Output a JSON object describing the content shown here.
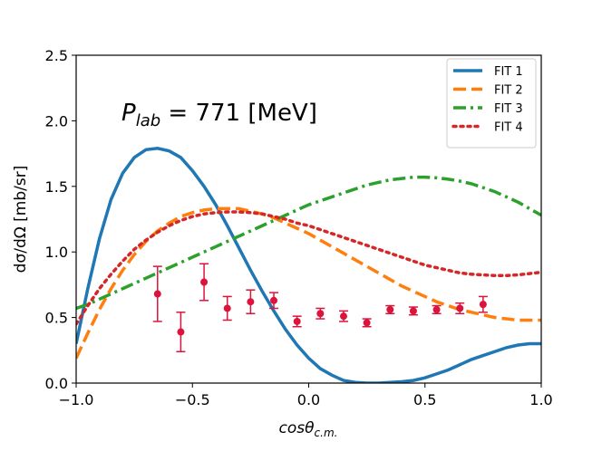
{
  "chart_data": {
    "type": "line",
    "xlabel_main": "cosθ",
    "xlabel_sub": "c.m.",
    "ylabel": "dσ/dΩ [mb/sr]",
    "xlim": [
      -1.0,
      1.0
    ],
    "ylim": [
      0.0,
      2.5
    ],
    "xticks": [
      -1.0,
      -0.5,
      0.0,
      0.5,
      1.0
    ],
    "xtick_labels": [
      "−1.0",
      "−0.5",
      "0.0",
      "0.5",
      "1.0"
    ],
    "yticks": [
      0.0,
      0.5,
      1.0,
      1.5,
      2.0,
      2.5
    ],
    "ytick_labels": [
      "0.0",
      "0.5",
      "1.0",
      "1.5",
      "2.0",
      "2.5"
    ],
    "annotation": {
      "main": "P",
      "sub": "lab",
      "rest": " = 771 [MeV]"
    },
    "legend_position": "top-right",
    "series": [
      {
        "name": "FIT 1",
        "color": "#1f77b4",
        "dash": "solid",
        "x": [
          -1.0,
          -0.95,
          -0.9,
          -0.85,
          -0.8,
          -0.75,
          -0.7,
          -0.65,
          -0.6,
          -0.55,
          -0.5,
          -0.45,
          -0.4,
          -0.35,
          -0.3,
          -0.25,
          -0.2,
          -0.15,
          -0.1,
          -0.05,
          0.0,
          0.05,
          0.1,
          0.15,
          0.2,
          0.25,
          0.3,
          0.35,
          0.4,
          0.45,
          0.5,
          0.55,
          0.6,
          0.65,
          0.7,
          0.75,
          0.8,
          0.85,
          0.9,
          0.95,
          1.0
        ],
        "y": [
          0.3,
          0.72,
          1.1,
          1.4,
          1.6,
          1.72,
          1.78,
          1.79,
          1.77,
          1.72,
          1.62,
          1.5,
          1.36,
          1.2,
          1.03,
          0.86,
          0.7,
          0.55,
          0.41,
          0.29,
          0.19,
          0.11,
          0.06,
          0.02,
          0.005,
          0.0,
          0.0,
          0.005,
          0.01,
          0.02,
          0.04,
          0.07,
          0.1,
          0.14,
          0.18,
          0.21,
          0.24,
          0.27,
          0.29,
          0.3,
          0.3
        ]
      },
      {
        "name": "FIT 2",
        "color": "#ff7f0e",
        "dash": "dashed",
        "x": [
          -1.0,
          -0.95,
          -0.9,
          -0.85,
          -0.8,
          -0.75,
          -0.7,
          -0.65,
          -0.6,
          -0.55,
          -0.5,
          -0.45,
          -0.4,
          -0.35,
          -0.3,
          -0.25,
          -0.2,
          -0.15,
          -0.1,
          -0.05,
          0.0,
          0.05,
          0.1,
          0.15,
          0.2,
          0.25,
          0.3,
          0.35,
          0.4,
          0.45,
          0.5,
          0.55,
          0.6,
          0.65,
          0.7,
          0.75,
          0.8,
          0.85,
          0.9,
          0.95,
          1.0
        ],
        "y": [
          0.19,
          0.38,
          0.56,
          0.72,
          0.86,
          0.98,
          1.08,
          1.16,
          1.22,
          1.27,
          1.3,
          1.32,
          1.33,
          1.33,
          1.33,
          1.31,
          1.29,
          1.26,
          1.22,
          1.18,
          1.14,
          1.09,
          1.04,
          0.99,
          0.94,
          0.89,
          0.84,
          0.79,
          0.74,
          0.7,
          0.66,
          0.62,
          0.59,
          0.56,
          0.54,
          0.52,
          0.5,
          0.49,
          0.48,
          0.48,
          0.48
        ]
      },
      {
        "name": "FIT 3",
        "color": "#2ca02c",
        "dash": "dashdot",
        "x": [
          -1.0,
          -0.95,
          -0.9,
          -0.85,
          -0.8,
          -0.75,
          -0.7,
          -0.65,
          -0.6,
          -0.55,
          -0.5,
          -0.45,
          -0.4,
          -0.35,
          -0.3,
          -0.25,
          -0.2,
          -0.15,
          -0.1,
          -0.05,
          0.0,
          0.05,
          0.1,
          0.15,
          0.2,
          0.25,
          0.3,
          0.35,
          0.4,
          0.45,
          0.5,
          0.55,
          0.6,
          0.65,
          0.7,
          0.75,
          0.8,
          0.85,
          0.9,
          0.95,
          1.0
        ],
        "y": [
          0.57,
          0.6,
          0.64,
          0.68,
          0.72,
          0.76,
          0.8,
          0.84,
          0.88,
          0.92,
          0.96,
          1.0,
          1.04,
          1.08,
          1.12,
          1.16,
          1.2,
          1.24,
          1.28,
          1.32,
          1.36,
          1.39,
          1.42,
          1.45,
          1.48,
          1.51,
          1.53,
          1.55,
          1.56,
          1.57,
          1.57,
          1.565,
          1.555,
          1.54,
          1.52,
          1.49,
          1.46,
          1.42,
          1.38,
          1.33,
          1.28
        ]
      },
      {
        "name": "FIT 4",
        "color": "#d62728",
        "dash": "dotted",
        "x": [
          -1.0,
          -0.95,
          -0.9,
          -0.85,
          -0.8,
          -0.75,
          -0.7,
          -0.65,
          -0.6,
          -0.55,
          -0.5,
          -0.45,
          -0.4,
          -0.35,
          -0.3,
          -0.25,
          -0.2,
          -0.15,
          -0.1,
          -0.05,
          0.0,
          0.05,
          0.1,
          0.15,
          0.2,
          0.25,
          0.3,
          0.35,
          0.4,
          0.45,
          0.5,
          0.55,
          0.6,
          0.65,
          0.7,
          0.75,
          0.8,
          0.85,
          0.9,
          0.95,
          1.0
        ],
        "y": [
          0.45,
          0.59,
          0.72,
          0.83,
          0.93,
          1.02,
          1.09,
          1.15,
          1.2,
          1.24,
          1.27,
          1.29,
          1.3,
          1.305,
          1.305,
          1.3,
          1.29,
          1.27,
          1.25,
          1.22,
          1.2,
          1.17,
          1.14,
          1.11,
          1.08,
          1.05,
          1.02,
          0.99,
          0.96,
          0.93,
          0.9,
          0.88,
          0.86,
          0.84,
          0.83,
          0.825,
          0.82,
          0.82,
          0.825,
          0.835,
          0.845
        ]
      }
    ],
    "data_points": {
      "color": "#dc143c",
      "points": [
        {
          "x": -0.65,
          "y": 0.68,
          "err": 0.21
        },
        {
          "x": -0.55,
          "y": 0.39,
          "err": 0.15
        },
        {
          "x": -0.45,
          "y": 0.77,
          "err": 0.14
        },
        {
          "x": -0.35,
          "y": 0.57,
          "err": 0.09
        },
        {
          "x": -0.25,
          "y": 0.62,
          "err": 0.09
        },
        {
          "x": -0.15,
          "y": 0.63,
          "err": 0.06
        },
        {
          "x": -0.05,
          "y": 0.47,
          "err": 0.04
        },
        {
          "x": 0.05,
          "y": 0.53,
          "err": 0.04
        },
        {
          "x": 0.15,
          "y": 0.51,
          "err": 0.04
        },
        {
          "x": 0.25,
          "y": 0.46,
          "err": 0.03
        },
        {
          "x": 0.35,
          "y": 0.56,
          "err": 0.03
        },
        {
          "x": 0.45,
          "y": 0.55,
          "err": 0.03
        },
        {
          "x": 0.55,
          "y": 0.56,
          "err": 0.03
        },
        {
          "x": 0.65,
          "y": 0.57,
          "err": 0.04
        },
        {
          "x": 0.75,
          "y": 0.6,
          "err": 0.06
        }
      ]
    }
  }
}
